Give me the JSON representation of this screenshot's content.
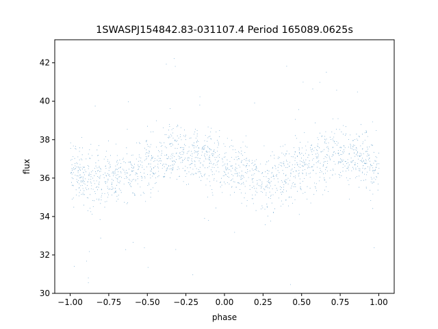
{
  "chart_data": {
    "type": "scatter",
    "title": "1SWASPJ154842.83-031107.4 Period 165089.0625s",
    "xlabel": "phase",
    "ylabel": "flux",
    "xlim": [
      -1.1,
      1.1
    ],
    "ylim": [
      30,
      43.2
    ],
    "xticks": [
      -1.0,
      -0.75,
      -0.5,
      -0.25,
      0.0,
      0.25,
      0.5,
      0.75,
      1.0
    ],
    "xtick_labels": [
      "−1.00",
      "−0.75",
      "−0.50",
      "−0.25",
      "0.00",
      "0.25",
      "0.50",
      "0.75",
      "1.00"
    ],
    "yticks": [
      30,
      32,
      34,
      36,
      38,
      40,
      42
    ],
    "ytick_labels": [
      "30",
      "32",
      "34",
      "36",
      "38",
      "40",
      "42"
    ],
    "grid": false,
    "point_color": "#1f77b4",
    "phase_range": [
      -1.0,
      1.0
    ],
    "points_x": [
      -1.0,
      -0.9,
      -0.8,
      -0.7,
      -0.6,
      -0.5,
      -0.4,
      -0.3,
      -0.2,
      -0.1,
      0.0,
      0.1,
      0.2,
      0.3,
      0.4,
      0.5,
      0.6,
      0.7,
      0.8,
      0.9,
      1.0
    ],
    "points_y": [
      36.5,
      36.2,
      35.9,
      36.1,
      36.5,
      36.8,
      37.1,
      37.3,
      37.3,
      37.0,
      36.6,
      36.3,
      35.9,
      35.9,
      36.3,
      36.7,
      37.0,
      37.2,
      37.2,
      37.0,
      36.6
    ]
  }
}
